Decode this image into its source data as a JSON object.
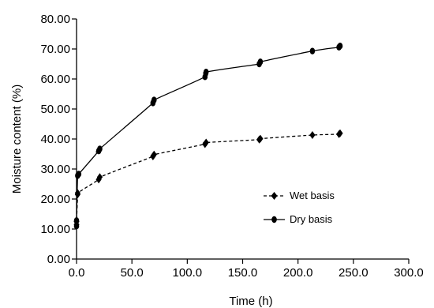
{
  "chart_data": {
    "type": "line",
    "title": "",
    "xlabel": "Time (h)",
    "ylabel": "Moisture content (%)",
    "xlim": [
      0,
      300
    ],
    "ylim": [
      0,
      80
    ],
    "xticks": [
      0,
      50,
      100,
      150,
      200,
      250,
      300
    ],
    "xtick_labels": [
      "0.0",
      "50.0",
      "100.0",
      "150.0",
      "200.0",
      "250.0",
      "300.0"
    ],
    "yticks": [
      0,
      10,
      20,
      30,
      40,
      50,
      60,
      70,
      80
    ],
    "ytick_labels": [
      "0.00",
      "10.00",
      "20.00",
      "30.00",
      "40.00",
      "50.00",
      "60.00",
      "70.00",
      "80.00"
    ],
    "grid": false,
    "legend_position": "right-middle",
    "series": [
      {
        "name": "Wet basis",
        "style": "dashed",
        "marker": "diamond",
        "color": "#000000",
        "points": [
          [
            0,
            11.5
          ],
          [
            0,
            12.5
          ],
          [
            1,
            21.5
          ],
          [
            1,
            22
          ],
          [
            20,
            26.5
          ],
          [
            21,
            27.3
          ],
          [
            69,
            34.2
          ],
          [
            70,
            34.8
          ],
          [
            116,
            38.3
          ],
          [
            117,
            38.8
          ],
          [
            165,
            39.8
          ],
          [
            166,
            40.1
          ],
          [
            213,
            41.3
          ],
          [
            237,
            41.6
          ],
          [
            238,
            41.9
          ]
        ]
      },
      {
        "name": "Dry basis",
        "style": "solid",
        "marker": "circle",
        "color": "#000000",
        "points": [
          [
            0,
            11
          ],
          [
            0,
            12.8
          ],
          [
            1,
            27.8
          ],
          [
            2,
            28.3
          ],
          [
            20,
            36
          ],
          [
            21,
            36.7
          ],
          [
            69,
            52
          ],
          [
            70,
            53
          ],
          [
            116,
            60.7
          ],
          [
            117,
            62.3
          ],
          [
            165,
            65
          ],
          [
            166,
            65.7
          ],
          [
            213,
            69.3
          ],
          [
            237,
            70.6
          ],
          [
            238,
            71
          ]
        ]
      }
    ]
  }
}
